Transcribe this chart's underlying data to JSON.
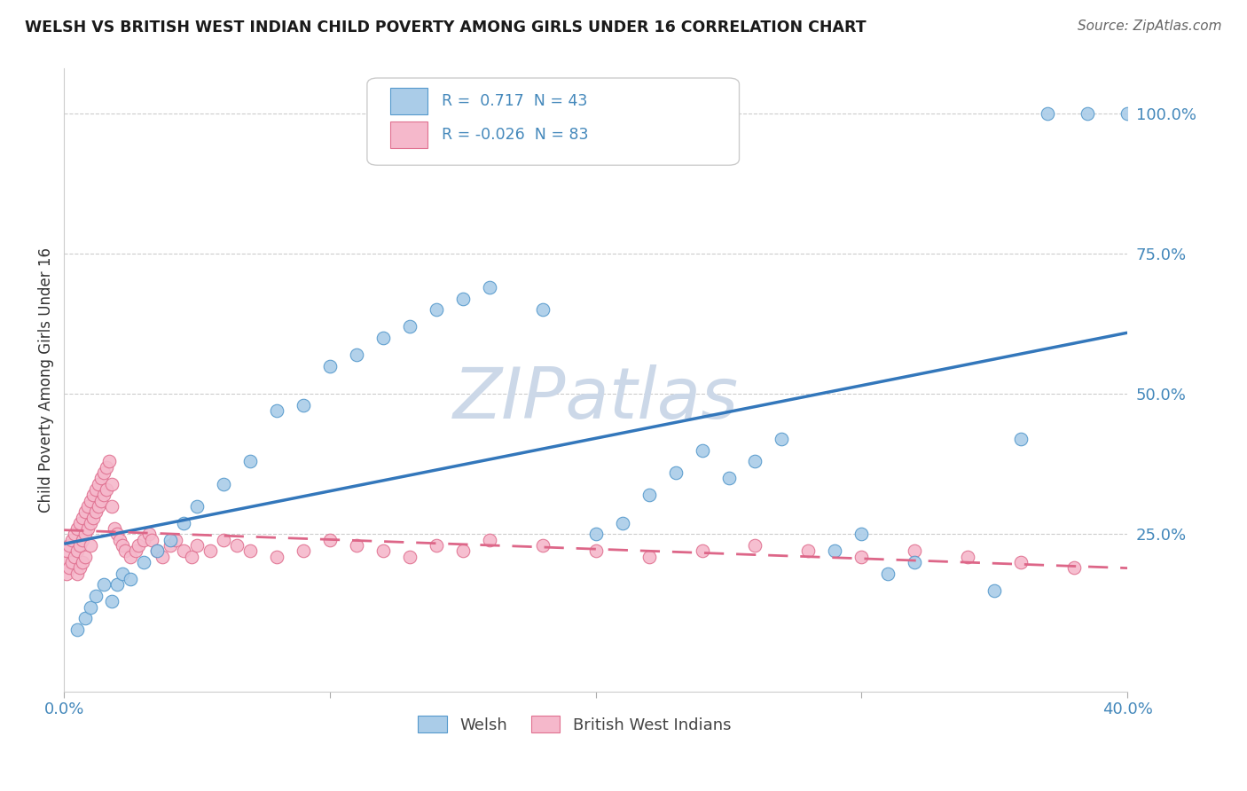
{
  "title": "WELSH VS BRITISH WEST INDIAN CHILD POVERTY AMONG GIRLS UNDER 16 CORRELATION CHART",
  "source": "Source: ZipAtlas.com",
  "ylabel": "Child Poverty Among Girls Under 16",
  "xlim": [
    0.0,
    0.4
  ],
  "ylim": [
    -0.03,
    1.08
  ],
  "ytick_labels_right": [
    "100.0%",
    "75.0%",
    "50.0%",
    "25.0%"
  ],
  "ytick_vals_right": [
    1.0,
    0.75,
    0.5,
    0.25
  ],
  "welsh_R": 0.717,
  "welsh_N": 43,
  "bwi_R": -0.026,
  "bwi_N": 83,
  "blue_fill": "#aacce8",
  "blue_edge": "#5599cc",
  "blue_line": "#3377bb",
  "pink_fill": "#f5b8cb",
  "pink_edge": "#e07090",
  "pink_line": "#dd6688",
  "watermark_color": "#ccd8e8",
  "grid_color": "#cccccc",
  "title_color": "#1a1a1a",
  "axis_label_color": "#333333",
  "tick_color_blue": "#4488bb",
  "legend_text_color": "#4488bb",
  "welsh_x": [
    0.005,
    0.008,
    0.01,
    0.012,
    0.015,
    0.018,
    0.02,
    0.022,
    0.025,
    0.03,
    0.035,
    0.04,
    0.045,
    0.05,
    0.06,
    0.07,
    0.08,
    0.09,
    0.1,
    0.11,
    0.12,
    0.13,
    0.14,
    0.15,
    0.16,
    0.18,
    0.2,
    0.21,
    0.22,
    0.23,
    0.24,
    0.25,
    0.26,
    0.27,
    0.29,
    0.3,
    0.31,
    0.32,
    0.35,
    0.36,
    0.37,
    0.385,
    0.4
  ],
  "welsh_y": [
    0.08,
    0.1,
    0.12,
    0.14,
    0.16,
    0.13,
    0.16,
    0.18,
    0.17,
    0.2,
    0.22,
    0.24,
    0.27,
    0.3,
    0.34,
    0.38,
    0.47,
    0.48,
    0.55,
    0.57,
    0.6,
    0.62,
    0.65,
    0.67,
    0.69,
    0.65,
    0.25,
    0.27,
    0.32,
    0.36,
    0.4,
    0.35,
    0.38,
    0.42,
    0.22,
    0.25,
    0.18,
    0.2,
    0.15,
    0.42,
    1.0,
    1.0,
    1.0
  ],
  "bwi_x": [
    0.0,
    0.001,
    0.001,
    0.002,
    0.002,
    0.003,
    0.003,
    0.004,
    0.004,
    0.005,
    0.005,
    0.005,
    0.006,
    0.006,
    0.006,
    0.007,
    0.007,
    0.007,
    0.008,
    0.008,
    0.008,
    0.009,
    0.009,
    0.01,
    0.01,
    0.01,
    0.011,
    0.011,
    0.012,
    0.012,
    0.013,
    0.013,
    0.014,
    0.014,
    0.015,
    0.015,
    0.016,
    0.016,
    0.017,
    0.018,
    0.018,
    0.019,
    0.02,
    0.021,
    0.022,
    0.023,
    0.025,
    0.027,
    0.028,
    0.03,
    0.032,
    0.033,
    0.035,
    0.037,
    0.04,
    0.042,
    0.045,
    0.048,
    0.05,
    0.055,
    0.06,
    0.065,
    0.07,
    0.08,
    0.09,
    0.1,
    0.11,
    0.12,
    0.13,
    0.14,
    0.15,
    0.16,
    0.18,
    0.2,
    0.22,
    0.24,
    0.26,
    0.28,
    0.3,
    0.32,
    0.34,
    0.36,
    0.38
  ],
  "bwi_y": [
    0.2,
    0.22,
    0.18,
    0.23,
    0.19,
    0.24,
    0.2,
    0.25,
    0.21,
    0.26,
    0.22,
    0.18,
    0.27,
    0.23,
    0.19,
    0.28,
    0.24,
    0.2,
    0.29,
    0.25,
    0.21,
    0.3,
    0.26,
    0.31,
    0.27,
    0.23,
    0.32,
    0.28,
    0.33,
    0.29,
    0.34,
    0.3,
    0.35,
    0.31,
    0.36,
    0.32,
    0.37,
    0.33,
    0.38,
    0.34,
    0.3,
    0.26,
    0.25,
    0.24,
    0.23,
    0.22,
    0.21,
    0.22,
    0.23,
    0.24,
    0.25,
    0.24,
    0.22,
    0.21,
    0.23,
    0.24,
    0.22,
    0.21,
    0.23,
    0.22,
    0.24,
    0.23,
    0.22,
    0.21,
    0.22,
    0.24,
    0.23,
    0.22,
    0.21,
    0.23,
    0.22,
    0.24,
    0.23,
    0.22,
    0.21,
    0.22,
    0.23,
    0.22,
    0.21,
    0.22,
    0.21,
    0.2,
    0.19
  ]
}
